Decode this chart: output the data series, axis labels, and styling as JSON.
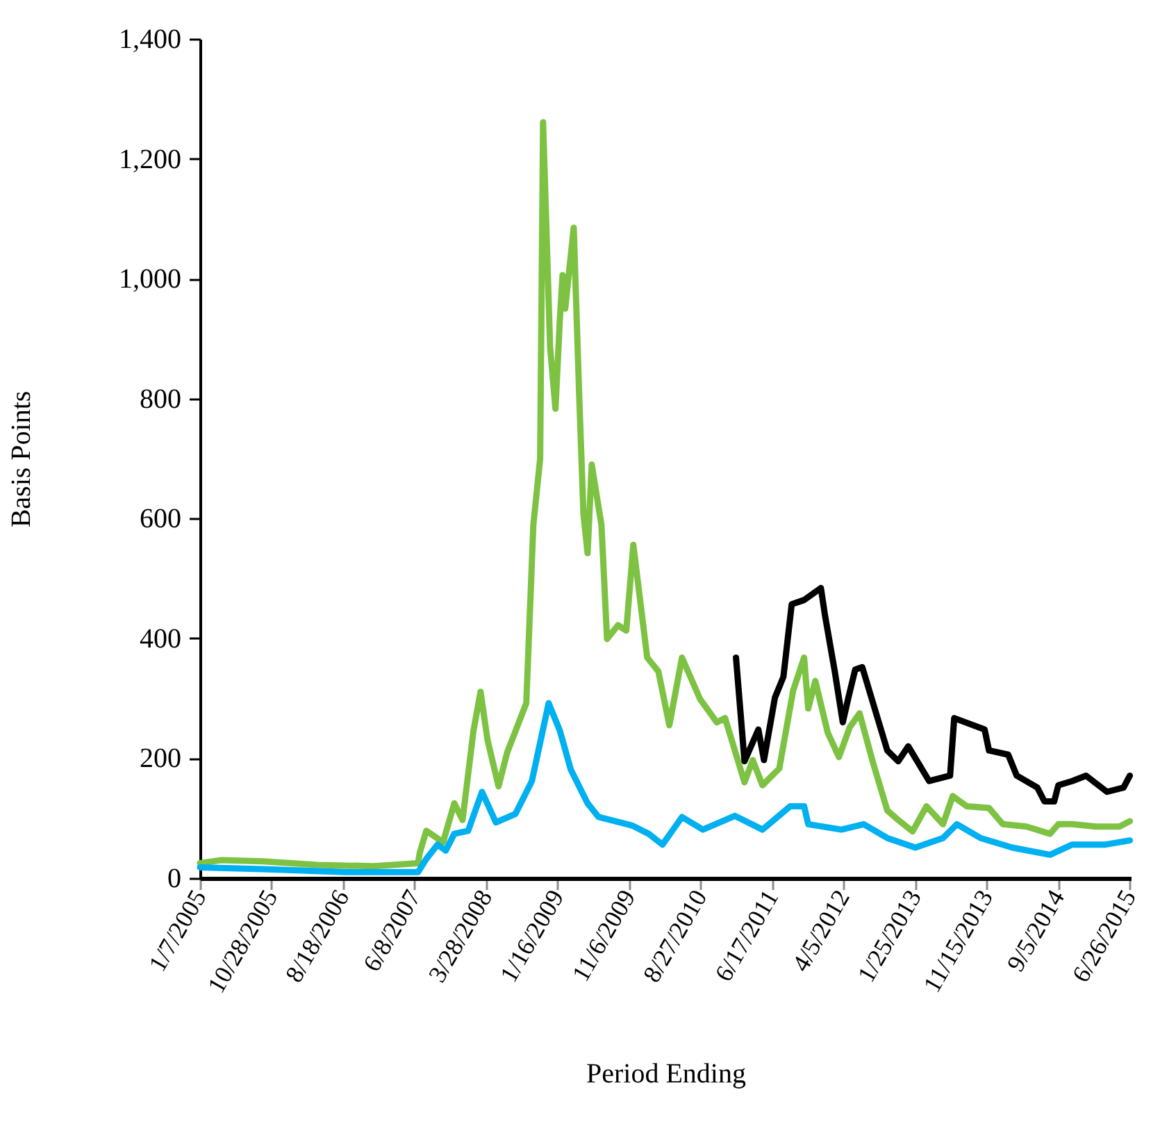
{
  "chart_data": {
    "type": "line",
    "xlabel": "Period Ending",
    "ylabel": "Basis Points",
    "xlim": [
      "2005-01-07",
      "2015-06-30"
    ],
    "ylim": [
      0,
      1400
    ],
    "xticks": [
      {
        "value": "2005-01-07",
        "label": "1/7/2005"
      },
      {
        "value": "2005-10-28",
        "label": "10/28/2005"
      },
      {
        "value": "2006-08-18",
        "label": "8/18/2006"
      },
      {
        "value": "2007-06-08",
        "label": "6/8/2007"
      },
      {
        "value": "2008-03-28",
        "label": "3/28/2008"
      },
      {
        "value": "2009-01-16",
        "label": "1/16/2009"
      },
      {
        "value": "2009-11-06",
        "label": "11/6/2009"
      },
      {
        "value": "2010-08-27",
        "label": "8/27/2010"
      },
      {
        "value": "2011-06-17",
        "label": "6/17/2011"
      },
      {
        "value": "2012-04-05",
        "label": "4/5/2012"
      },
      {
        "value": "2013-01-25",
        "label": "1/25/2013"
      },
      {
        "value": "2013-11-15",
        "label": "11/15/2013"
      },
      {
        "value": "2014-09-05",
        "label": "9/5/2014"
      },
      {
        "value": "2015-06-26",
        "label": "6/26/2015"
      }
    ],
    "yticks": [
      {
        "value": 0,
        "label": "0"
      },
      {
        "value": 200,
        "label": "200"
      },
      {
        "value": 400,
        "label": "400"
      },
      {
        "value": 600,
        "label": "600"
      },
      {
        "value": 800,
        "label": "800"
      },
      {
        "value": 1000,
        "label": "1,000"
      },
      {
        "value": 1200,
        "label": "1,200"
      },
      {
        "value": 1400,
        "label": "1,400"
      }
    ],
    "grid": false,
    "marker": "none",
    "line_style": "solid",
    "series": [
      {
        "color": "#7dc242",
        "x": [
          "2005-01-07",
          "2005-04-02",
          "2005-09-21",
          "2006-05-07",
          "2006-12-21",
          "2007-06-22",
          "2007-06-29",
          "2007-07-26",
          "2007-10-03",
          "2007-11-18",
          "2007-12-22",
          "2008-02-05",
          "2008-03-05",
          "2008-04-03",
          "2008-05-18",
          "2008-06-22",
          "2008-09-09",
          "2008-10-08",
          "2008-11-05",
          "2008-11-17",
          "2008-12-16",
          "2009-01-07",
          "2009-01-25",
          "2009-02-05",
          "2009-02-16",
          "2009-03-23",
          "2009-04-14",
          "2009-05-02",
          "2009-05-19",
          "2009-06-05",
          "2009-07-15",
          "2009-08-07",
          "2009-09-21",
          "2009-10-25",
          "2009-11-23",
          "2010-01-19",
          "2010-03-06",
          "2010-04-20",
          "2010-06-11",
          "2010-08-24",
          "2010-11-01",
          "2010-12-05",
          "2011-02-23",
          "2011-03-29",
          "2011-05-08",
          "2011-07-16",
          "2011-09-11",
          "2011-10-26",
          "2011-11-12",
          "2011-12-11",
          "2012-01-31",
          "2012-03-17",
          "2012-05-01",
          "2012-06-10",
          "2012-08-06",
          "2012-10-02",
          "2012-11-16",
          "2013-01-14",
          "2013-03-12",
          "2013-05-19",
          "2013-06-28",
          "2013-08-24",
          "2013-11-24",
          "2014-01-20",
          "2014-04-27",
          "2014-08-02",
          "2014-09-05",
          "2014-11-01",
          "2015-02-06",
          "2015-05-14",
          "2015-06-26"
        ],
        "values": [
          25,
          30,
          28,
          22,
          20,
          25,
          42,
          79,
          60,
          125,
          97,
          246,
          311,
          230,
          153,
          209,
          292,
          589,
          700,
          1261,
          885,
          783,
          932,
          1006,
          950,
          1085,
          811,
          607,
          542,
          690,
          589,
          399,
          422,
          413,
          556,
          368,
          345,
          255,
          368,
          299,
          260,
          267,
          160,
          197,
          155,
          183,
          313,
          368,
          283,
          329,
          243,
          202,
          252,
          275,
          190,
          113,
          97,
          78,
          120,
          90,
          137,
          120,
          117,
          90,
          86,
          74,
          90,
          90,
          86,
          86,
          95
        ]
      },
      {
        "color": "#00b0f0",
        "x": [
          "2005-01-07",
          "2005-09-21",
          "2006-08-29",
          "2007-06-22",
          "2007-07-26",
          "2007-09-10",
          "2007-10-14",
          "2007-11-18",
          "2008-01-14",
          "2008-03-11",
          "2008-05-07",
          "2008-07-26",
          "2008-10-02",
          "2008-12-10",
          "2009-01-25",
          "2009-03-11",
          "2009-05-19",
          "2009-07-03",
          "2009-11-17",
          "2010-01-25",
          "2010-03-23",
          "2010-06-11",
          "2010-09-05",
          "2011-01-14",
          "2011-05-08",
          "2011-08-30",
          "2011-10-26",
          "2011-11-12",
          "2012-03-27",
          "2012-06-27",
          "2012-10-02",
          "2013-01-25",
          "2013-05-19",
          "2013-07-15",
          "2013-10-20",
          "2014-02-28",
          "2014-08-02",
          "2014-11-01",
          "2015-03-18",
          "2015-06-26"
        ],
        "values": [
          18,
          15,
          10,
          10,
          32,
          56,
          46,
          74,
          79,
          144,
          93,
          107,
          162,
          292,
          246,
          181,
          125,
          102,
          88,
          74,
          56,
          102,
          81,
          104,
          81,
          120,
          120,
          90,
          81,
          90,
          67,
          51,
          67,
          90,
          67,
          51,
          39,
          56,
          56,
          63
        ]
      },
      {
        "color": "#000000",
        "x": [
          "2011-01-19",
          "2011-02-23",
          "2011-04-21",
          "2011-05-14",
          "2011-06-28",
          "2011-08-02",
          "2011-09-05",
          "2011-10-26",
          "2012-01-03",
          "2012-01-20",
          "2012-02-29",
          "2012-04-02",
          "2012-04-25",
          "2012-05-23",
          "2012-06-21",
          "2012-09-03",
          "2012-10-02",
          "2012-11-16",
          "2012-12-27",
          "2013-03-23",
          "2013-06-17",
          "2013-07-04",
          "2013-11-06",
          "2013-11-24",
          "2014-02-11",
          "2014-03-18",
          "2014-06-11",
          "2014-07-10",
          "2014-08-19",
          "2014-09-05",
          "2014-11-01",
          "2014-12-28",
          "2015-03-24",
          "2015-05-31",
          "2015-06-26"
        ],
        "values": [
          368,
          195,
          248,
          197,
          301,
          336,
          457,
          464,
          484,
          438,
          345,
          260,
          301,
          348,
          352,
          252,
          213,
          195,
          220,
          162,
          171,
          267,
          248,
          213,
          206,
          171,
          151,
          128,
          128,
          155,
          162,
          171,
          144,
          151,
          171
        ]
      }
    ]
  }
}
